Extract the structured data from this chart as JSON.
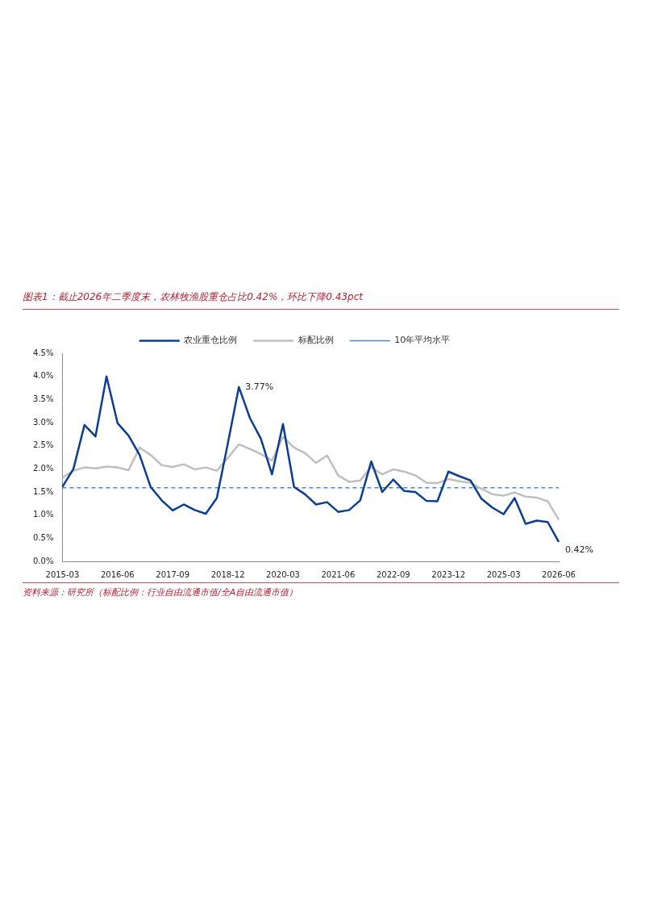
{
  "chart_data": {
    "type": "line",
    "title": "图表1：截止2026年二季度末，农林牧渔股重仓占比0.42%，环比下降0.43pct",
    "annotations": [
      "资料来源：研究所（标配比例：行业自由流通市值/全A自由流通市值）"
    ],
    "categories": [
      "2015-03",
      null,
      null,
      null,
      null,
      "2016-06",
      null,
      null,
      null,
      null,
      "2017-09",
      null,
      null,
      null,
      null,
      "2018-12",
      null,
      null,
      null,
      null,
      "2020-03",
      null,
      null,
      null,
      null,
      "2021-06",
      null,
      null,
      null,
      null,
      "2022-09",
      null,
      null,
      null,
      null,
      "2023-12",
      null,
      null,
      null,
      null,
      "2025-03",
      null,
      null,
      null,
      null,
      "2026-06"
    ],
    "series": [
      {
        "name": "农业重仓比例",
        "color": "#0b3d91",
        "line_style": "solid",
        "values": [
          1.61,
          2.0,
          2.95,
          2.7,
          4.0,
          2.99,
          2.72,
          2.3,
          1.61,
          1.32,
          1.1,
          1.23,
          1.11,
          1.03,
          1.37,
          2.55,
          3.77,
          3.1,
          2.65,
          1.88,
          2.97,
          1.61,
          1.45,
          1.23,
          1.28,
          1.07,
          1.11,
          1.32,
          2.16,
          1.5,
          1.77,
          1.52,
          1.5,
          1.31,
          1.3,
          1.94,
          1.84,
          1.75,
          1.35,
          1.16,
          1.02,
          1.37,
          0.81,
          0.88,
          0.85,
          0.42
        ],
        "value_labels": [
          null,
          null,
          null,
          null,
          null,
          null,
          null,
          null,
          null,
          null,
          null,
          null,
          null,
          null,
          null,
          null,
          "3.77%",
          null,
          null,
          null,
          null,
          null,
          null,
          null,
          null,
          null,
          null,
          null,
          null,
          null,
          null,
          null,
          null,
          null,
          null,
          null,
          null,
          null,
          null,
          null,
          null,
          null,
          null,
          null,
          null,
          "0.42%"
        ]
      },
      {
        "name": "标配比例",
        "color": "#bfbfbf",
        "line_style": "solid",
        "values": [
          1.81,
          1.96,
          2.03,
          2.01,
          2.05,
          2.03,
          1.97,
          2.46,
          2.3,
          2.08,
          2.04,
          2.1,
          1.99,
          2.03,
          1.96,
          2.24,
          2.53,
          2.43,
          2.32,
          2.18,
          2.69,
          2.46,
          2.34,
          2.13,
          2.29,
          1.86,
          1.72,
          1.75,
          2.04,
          1.88,
          1.99,
          1.94,
          1.86,
          1.7,
          1.69,
          1.78,
          1.73,
          1.7,
          1.57,
          1.45,
          1.42,
          1.49,
          1.4,
          1.38,
          1.3,
          0.9
        ]
      },
      {
        "name": "10年平均水平",
        "color": "#4a86c8",
        "line_style": "dashed",
        "values": [
          1.59,
          1.59,
          1.59,
          1.59,
          1.59,
          1.59,
          1.59,
          1.59,
          1.59,
          1.59,
          1.59,
          1.59,
          1.59,
          1.59,
          1.59,
          1.59,
          1.59,
          1.59,
          1.59,
          1.59,
          1.59,
          1.59,
          1.59,
          1.59,
          1.59,
          1.59,
          1.59,
          1.59,
          1.59,
          1.59,
          1.59,
          1.59,
          1.59,
          1.59,
          1.59,
          1.59,
          1.59,
          1.59,
          1.59,
          1.59,
          1.59,
          1.59,
          1.59,
          1.59,
          1.59,
          1.59
        ]
      }
    ],
    "ylim": [
      0,
      4.5
    ],
    "yticks": [
      {
        "value": 0,
        "label": "0.0%"
      },
      {
        "value": 0.5,
        "label": "0.5%"
      },
      {
        "value": 1,
        "label": "1.0%"
      },
      {
        "value": 1.5,
        "label": "1.5%"
      },
      {
        "value": 2,
        "label": "2.0%"
      },
      {
        "value": 2.5,
        "label": "2.5%"
      },
      {
        "value": 3,
        "label": "3.0%"
      },
      {
        "value": 3.5,
        "label": "3.5%"
      },
      {
        "value": 4,
        "label": "4.0%"
      },
      {
        "value": 4.5,
        "label": "4.5%"
      }
    ],
    "legend": "top",
    "grid": false,
    "marker": "none"
  }
}
